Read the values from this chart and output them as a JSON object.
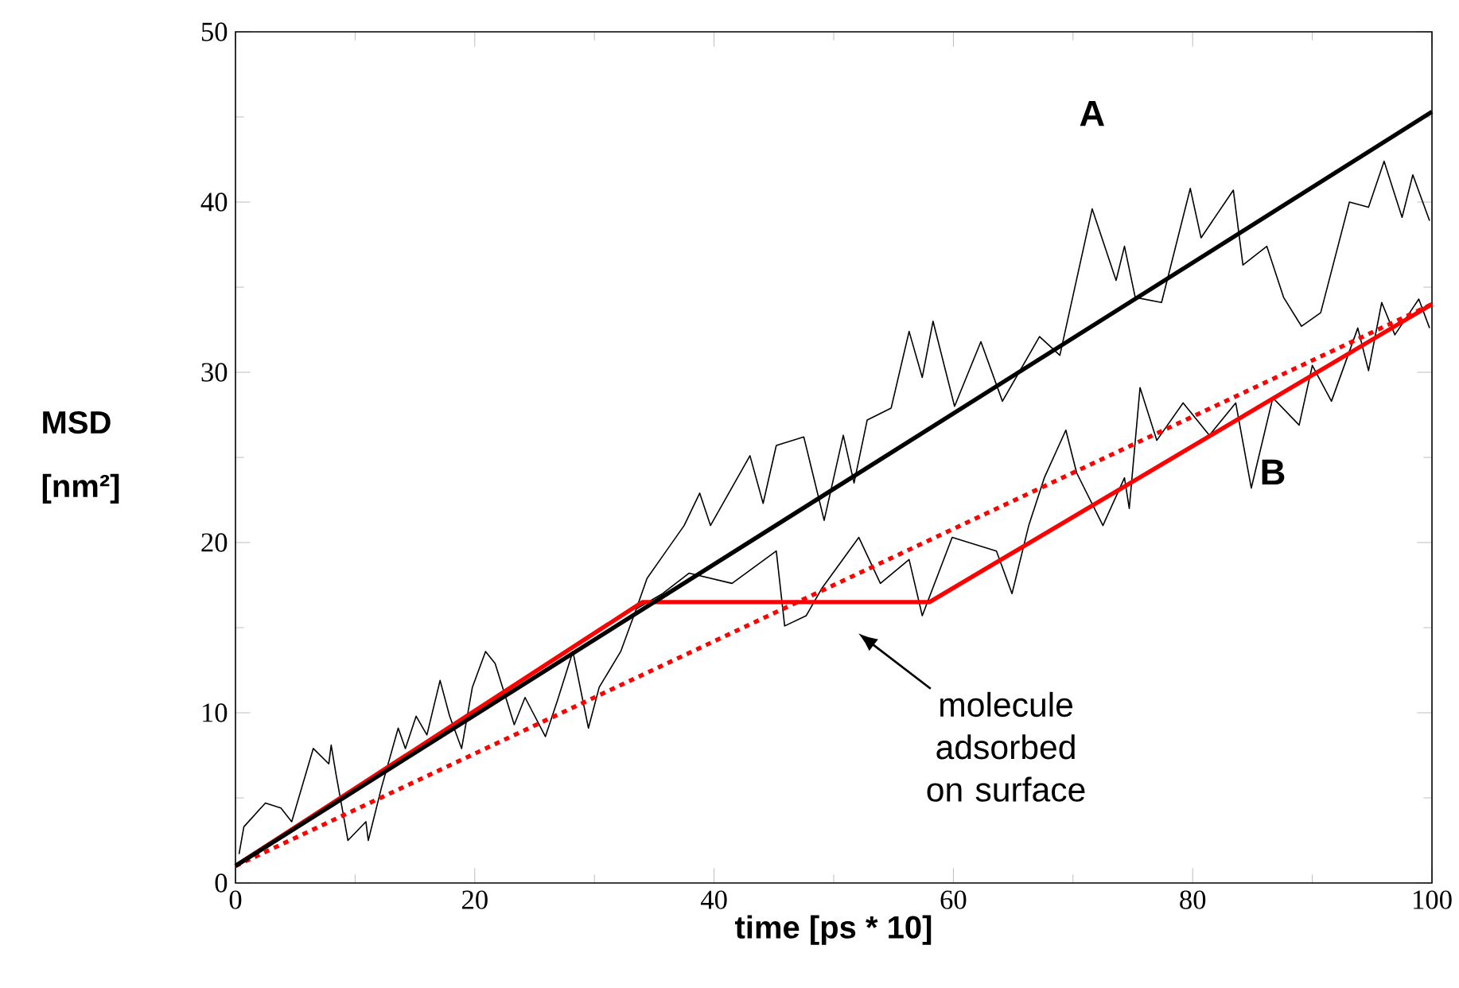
{
  "chart_data": {
    "type": "line",
    "xlabel": "time [ps * 10]",
    "ylabel": "MSD [nm²]",
    "xlim": [
      0,
      100
    ],
    "ylim": [
      0,
      50
    ],
    "xticks": [
      0,
      20,
      40,
      60,
      80,
      100
    ],
    "yticks": [
      0,
      10,
      20,
      30,
      40,
      50
    ],
    "annotations": [
      "molecule adsorbed on surface"
    ],
    "series": [
      {
        "name": "A",
        "color": "#000000",
        "x": [
          0.3,
          0.7,
          2.5,
          3.8,
          4.7,
          6.5,
          7.8,
          8.0,
          8.4,
          9.4,
          10.9,
          11.1,
          12.2,
          13.6,
          14.2,
          15.1,
          16.0,
          17.1,
          17.9,
          18.9,
          19.8,
          20.9,
          21.7,
          23.3,
          24.2,
          25.9,
          26.9,
          28.2,
          29.5,
          30.4,
          32.2,
          33.5,
          34.4,
          35.7,
          37.5,
          38.8,
          39.7,
          43.0,
          44.1,
          45.2,
          47.5,
          49.2,
          50.8,
          51.7,
          52.8,
          54.8,
          56.3,
          57.4,
          58.3,
          60.1,
          62.3,
          64.1,
          67.2,
          68.9,
          71.6,
          73.6,
          74.3,
          75.2,
          77.4,
          79.8,
          80.7,
          83.4,
          84.2,
          86.2,
          87.6,
          89.1,
          90.7,
          93.1,
          94.7,
          96.0,
          97.5,
          98.4,
          99.8
        ],
        "values": [
          1.7,
          3.3,
          4.7,
          4.4,
          3.6,
          7.9,
          7.0,
          8.1,
          6.4,
          2.5,
          3.6,
          2.5,
          5.6,
          9.1,
          7.9,
          9.8,
          8.7,
          11.9,
          9.8,
          7.9,
          11.5,
          13.6,
          12.9,
          9.3,
          10.9,
          8.6,
          10.7,
          13.6,
          9.1,
          11.5,
          13.6,
          16.1,
          17.9,
          19.2,
          21.0,
          22.9,
          21.0,
          25.1,
          22.3,
          25.7,
          26.2,
          21.3,
          26.3,
          23.5,
          27.2,
          27.9,
          32.4,
          29.7,
          33.0,
          28.0,
          31.8,
          28.3,
          32.1,
          31.0,
          39.6,
          35.4,
          37.4,
          34.4,
          34.1,
          40.8,
          37.9,
          40.7,
          36.3,
          37.4,
          34.4,
          32.7,
          33.5,
          40.0,
          39.7,
          42.4,
          39.1,
          41.6,
          38.9
        ]
      },
      {
        "name": "B",
        "color": "#000000",
        "x": [
          33.5,
          35.7,
          37.9,
          41.5,
          45.2,
          45.9,
          47.7,
          49.0,
          52.1,
          53.9,
          56.3,
          57.4,
          59.9,
          63.6,
          64.9,
          66.3,
          67.6,
          69.4,
          70.3,
          72.5,
          74.3,
          74.7,
          75.6,
          77.0,
          79.2,
          81.4,
          83.6,
          84.9,
          86.7,
          88.9,
          90.0,
          91.6,
          93.8,
          94.7,
          95.8,
          96.9,
          98.9,
          99.8
        ],
        "values": [
          16.1,
          17.0,
          18.2,
          17.6,
          19.5,
          15.1,
          15.7,
          17.3,
          20.3,
          17.6,
          19.0,
          15.7,
          20.3,
          19.5,
          17.0,
          21.0,
          23.8,
          26.6,
          24.1,
          21.0,
          23.8,
          22.0,
          29.1,
          26.0,
          28.2,
          26.3,
          28.2,
          23.2,
          28.5,
          26.9,
          30.4,
          28.3,
          32.6,
          30.1,
          34.1,
          32.2,
          34.3,
          32.6
        ]
      },
      {
        "color": "#ff0000",
        "line_style": "dotted",
        "x": [
          0,
          100
        ],
        "values": [
          1,
          34
        ]
      },
      {
        "color": "#ff0000",
        "x": [
          0,
          34,
          58,
          100
        ],
        "values": [
          1,
          16.5,
          16.5,
          34
        ]
      },
      {
        "color": "#000000",
        "x": [
          0,
          100
        ],
        "values": [
          1,
          45.3
        ]
      }
    ]
  }
}
